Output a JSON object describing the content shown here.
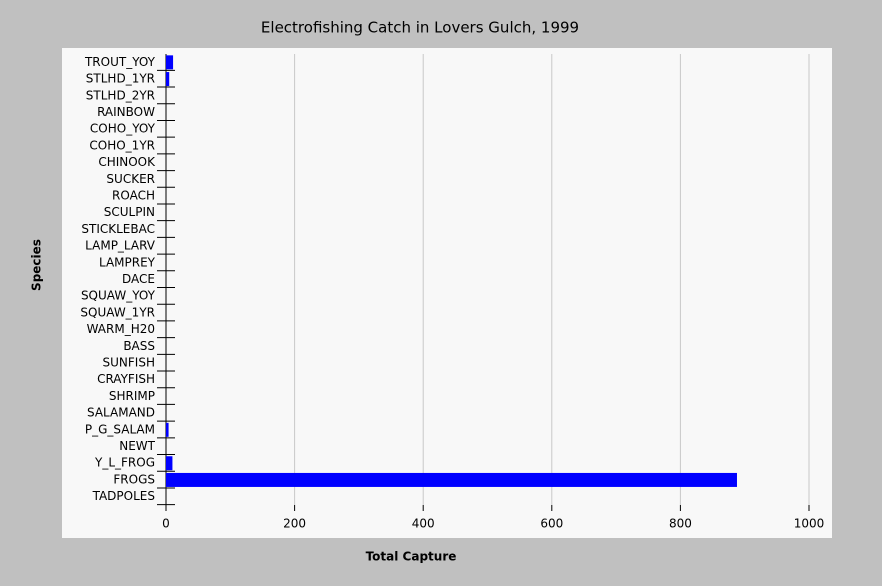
{
  "chart_data": {
    "type": "bar",
    "orientation": "horizontal",
    "title": "Electrofishing Catch in Lovers Gulch, 1999",
    "x_label": "Total Capture",
    "y_label": "Species",
    "categories": [
      "TROUT_YOY",
      "STLHD_1YR",
      "STLHD_2YR",
      "RAINBOW",
      "COHO_YOY",
      "COHO_1YR",
      "CHINOOK",
      "SUCKER",
      "ROACH",
      "SCULPIN",
      "STICKLEBAC",
      "LAMP_LARV",
      "LAMPREY",
      "DACE",
      "SQUAW_YOY",
      "SQUAW_1YR",
      "WARM_H20",
      "BASS",
      "SUNFISH",
      "CRAYFISH",
      "SHRIMP",
      "SALAMAND",
      "P_G_SALAM",
      "NEWT",
      "Y_L_FROG",
      "FROGS",
      "TADPOLES"
    ],
    "values": [
      11,
      5,
      0,
      0,
      0,
      0,
      0,
      0,
      0,
      0,
      0,
      0,
      0,
      0,
      0,
      0,
      0,
      0,
      0,
      0,
      0,
      0,
      4,
      0,
      10,
      888,
      0
    ],
    "color": "#0000ff",
    "xlim": [
      0,
      1000
    ],
    "xticks": [
      0,
      200,
      400,
      600,
      800,
      1000
    ],
    "grid": true
  }
}
